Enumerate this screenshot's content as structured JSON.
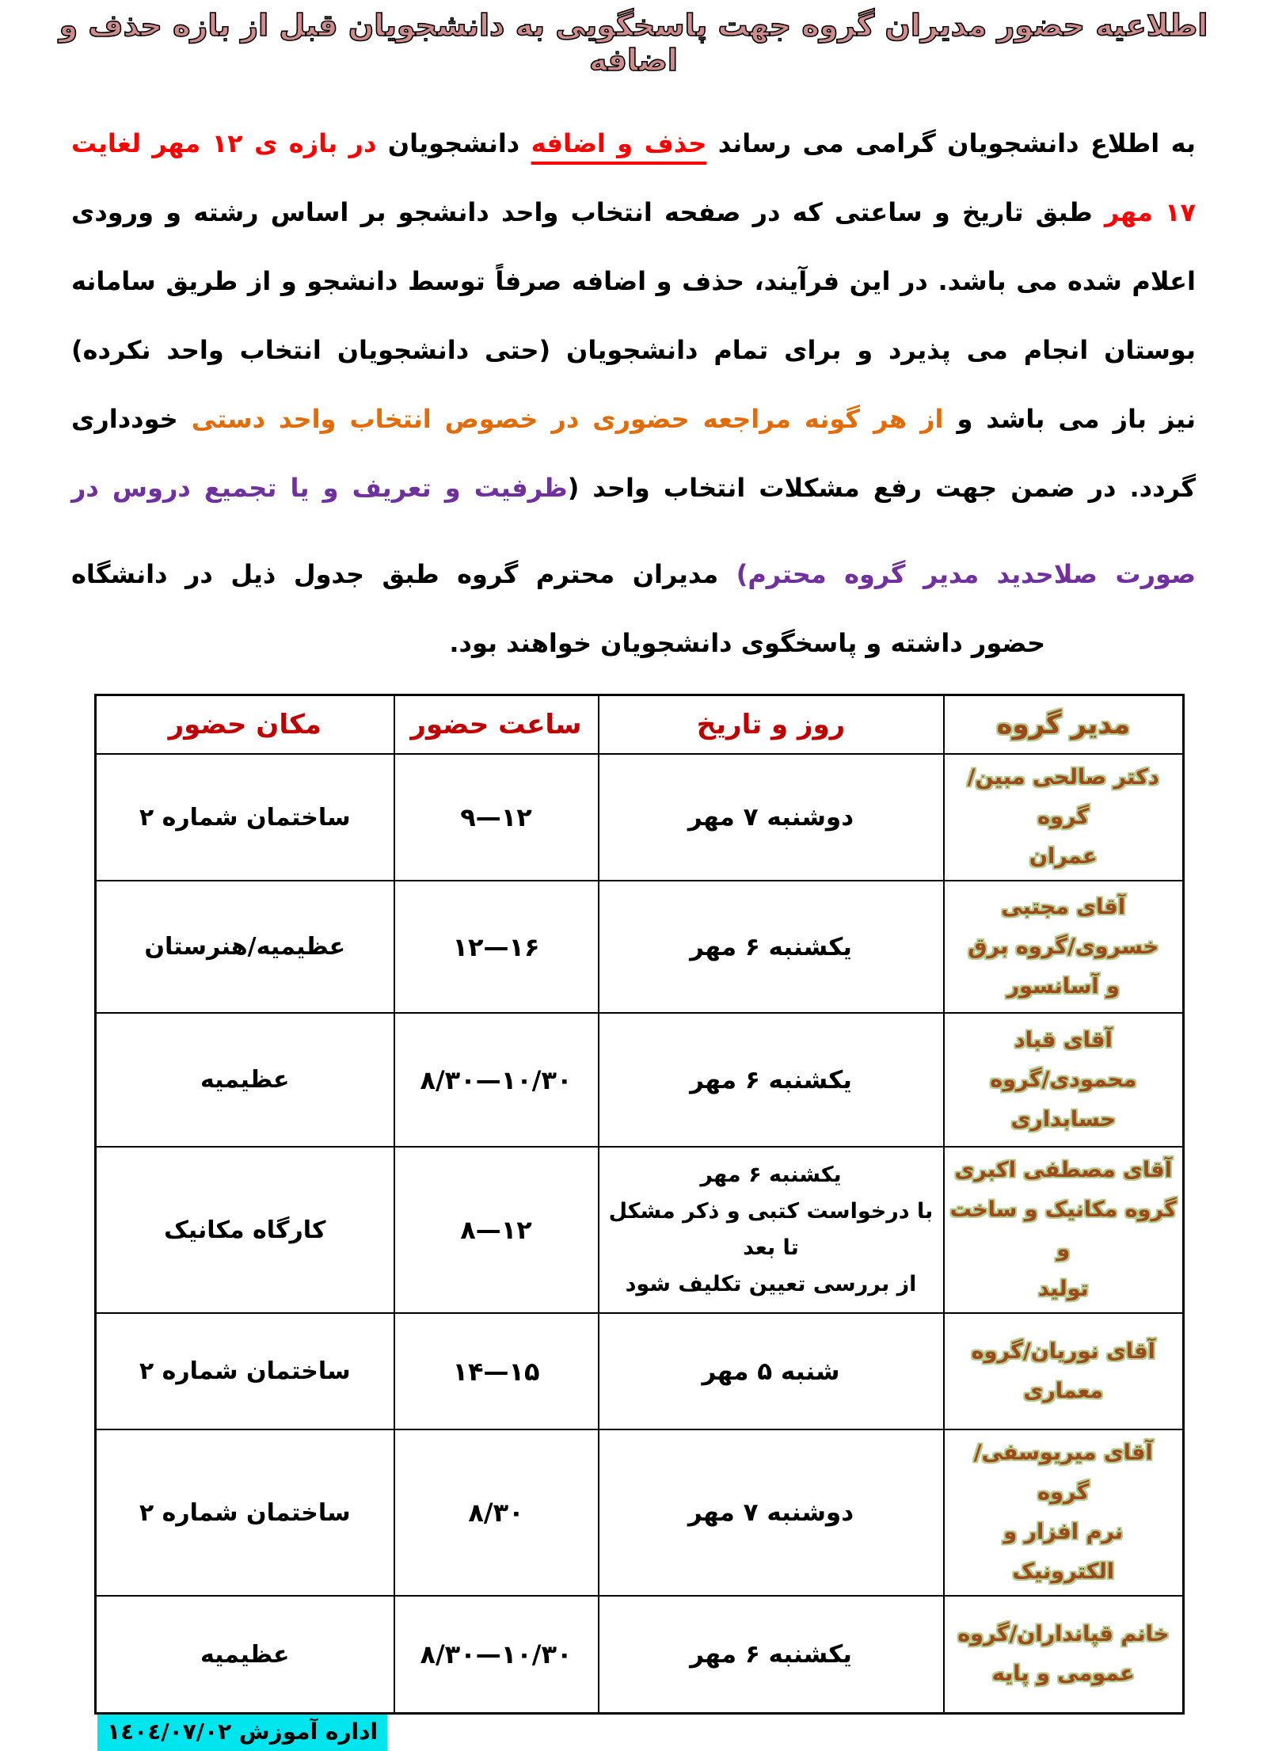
{
  "title": "اطلاعیه حضور مدیران گروه جهت پاسخگویی به دانشجویان قبل از بازه حذف و اضافه",
  "palette": {
    "paragraph_red": "#FF0000",
    "orange": "#E36C0A",
    "purple": "#7030A0",
    "header_red": "#C00000",
    "manager_fill": "#9C4A1A",
    "manager_outline": "#B5CA8E",
    "title_fill": "#D08C8C",
    "highlight_cyan": "#00E5EE"
  },
  "paragraph": {
    "lines": [
      {
        "segments": [
          {
            "text": "به اطلاع دانشجویان گرامی می رساند ",
            "color": "#000000"
          },
          {
            "text": "حذف و اضافه",
            "color": "#FF0000",
            "underline": true
          },
          {
            "text": " دانشجویان ",
            "color": "#000000"
          },
          {
            "text": "در بازه ی ۱۲ مهر لغایت",
            "color": "#FF0000"
          }
        ]
      },
      {
        "segments": [
          {
            "text": "۱۷ مهر ",
            "color": "#FF0000"
          },
          {
            "text": "طبق تاریخ و ساعتی که در صفحه انتخاب واحد دانشجو بر اساس رشته و ورودی",
            "color": "#000000"
          }
        ]
      },
      {
        "segments": [
          {
            "text": "اعلام شده می باشد. در این فرآیند، حذف و اضافه صرفاً توسط دانشجو و از طریق سامانه",
            "color": "#000000"
          }
        ]
      },
      {
        "segments": [
          {
            "text": "بوستان انجام می پذیرد و برای تمام دانشجویان (حتی دانشجویان انتخاب واحد نکرده)",
            "color": "#000000"
          }
        ]
      },
      {
        "segments": [
          {
            "text": "نیز باز می باشد و ",
            "color": "#000000"
          },
          {
            "text": "از هر گونه مراجعه حضوری در خصوص انتخاب واحد دستی",
            "color": "#E36C0A"
          },
          {
            "text": " خودداری",
            "color": "#000000"
          }
        ]
      },
      {
        "segments": [
          {
            "text": "گردد. در ضمن جهت رفع مشکلات انتخاب واحد (",
            "color": "#000000"
          },
          {
            "text": "ظرفیت و تعریف و یا تجمیع دروس در",
            "color": "#7030A0"
          }
        ]
      },
      {
        "gap_before": true,
        "segments": [
          {
            "text": "صورت صلاحدید مدیر گروه محترم)",
            "color": "#7030A0"
          },
          {
            "text": " مدیران محترم گروه طبق جدول ذیل در دانشگاه",
            "color": "#000000"
          }
        ]
      },
      {
        "last": true,
        "segments": [
          {
            "text": "حضور داشته و پاسخگوی دانشجویان خواهند بود.",
            "color": "#000000"
          }
        ]
      }
    ]
  },
  "table": {
    "headers": [
      {
        "label": "مدیر گروه",
        "variant": "manager"
      },
      {
        "label": "روز و تاریخ",
        "variant": "red"
      },
      {
        "label": "ساعت حضور",
        "variant": "red"
      },
      {
        "label": "مکان حضور",
        "variant": "red"
      }
    ],
    "rows": [
      {
        "manager": [
          "دکتر صالحی مبین/گروه",
          "عمران"
        ],
        "date": [
          "دوشنبه ۷ مهر"
        ],
        "time": "۹—۱۲",
        "place": "ساختمان شماره ۲"
      },
      {
        "manager": [
          "آقای مجتبی",
          "خسروی/گروه برق",
          "و آسانسور"
        ],
        "date": [
          "یکشنبه ۶ مهر"
        ],
        "time": "۱۲—۱۶",
        "place": "عظیمیه/هنرستان"
      },
      {
        "manager": [
          "آقای قباد",
          "محمودی/گروه",
          "حسابداری"
        ],
        "date": [
          "یکشنبه ۶ مهر"
        ],
        "time": "۸/۳۰—۱۰/۳۰",
        "place": "عظیمیه"
      },
      {
        "manager": [
          "آقای مصطفی اکبری",
          "گروه مکانیک و ساخت و",
          "تولید"
        ],
        "date": [
          "یکشنبه ۶ مهر",
          "با درخواست کتبی و ذکر مشکل تا بعد",
          "از بررسی تعیین تکلیف شود"
        ],
        "time": "۸—۱۲",
        "place": "کارگاه مکانیک"
      },
      {
        "manager": [
          "آقای نوریان/گروه",
          "معماری"
        ],
        "date": [
          "شنبه ۵ مهر"
        ],
        "time": "۱۴—۱۵",
        "place": "ساختمان شماره ۲"
      },
      {
        "manager": [
          "آقای میریوسفی/گروه",
          "نرم افزار و الکترونیک"
        ],
        "date": [
          "دوشنبه ۷ مهر"
        ],
        "time": "۸/۳۰",
        "place": "ساختمان شماره ۲"
      },
      {
        "manager": [
          "خانم قپانداران/گروه",
          "عمومی و پایه"
        ],
        "date": [
          "یکشنبه ۶ مهر"
        ],
        "time": "۸/۳۰—۱۰/۳۰",
        "place": "عظیمیه"
      }
    ]
  },
  "footer": {
    "text": "اداره آموزش ١٤٠٤/٠٧/٠٢"
  }
}
